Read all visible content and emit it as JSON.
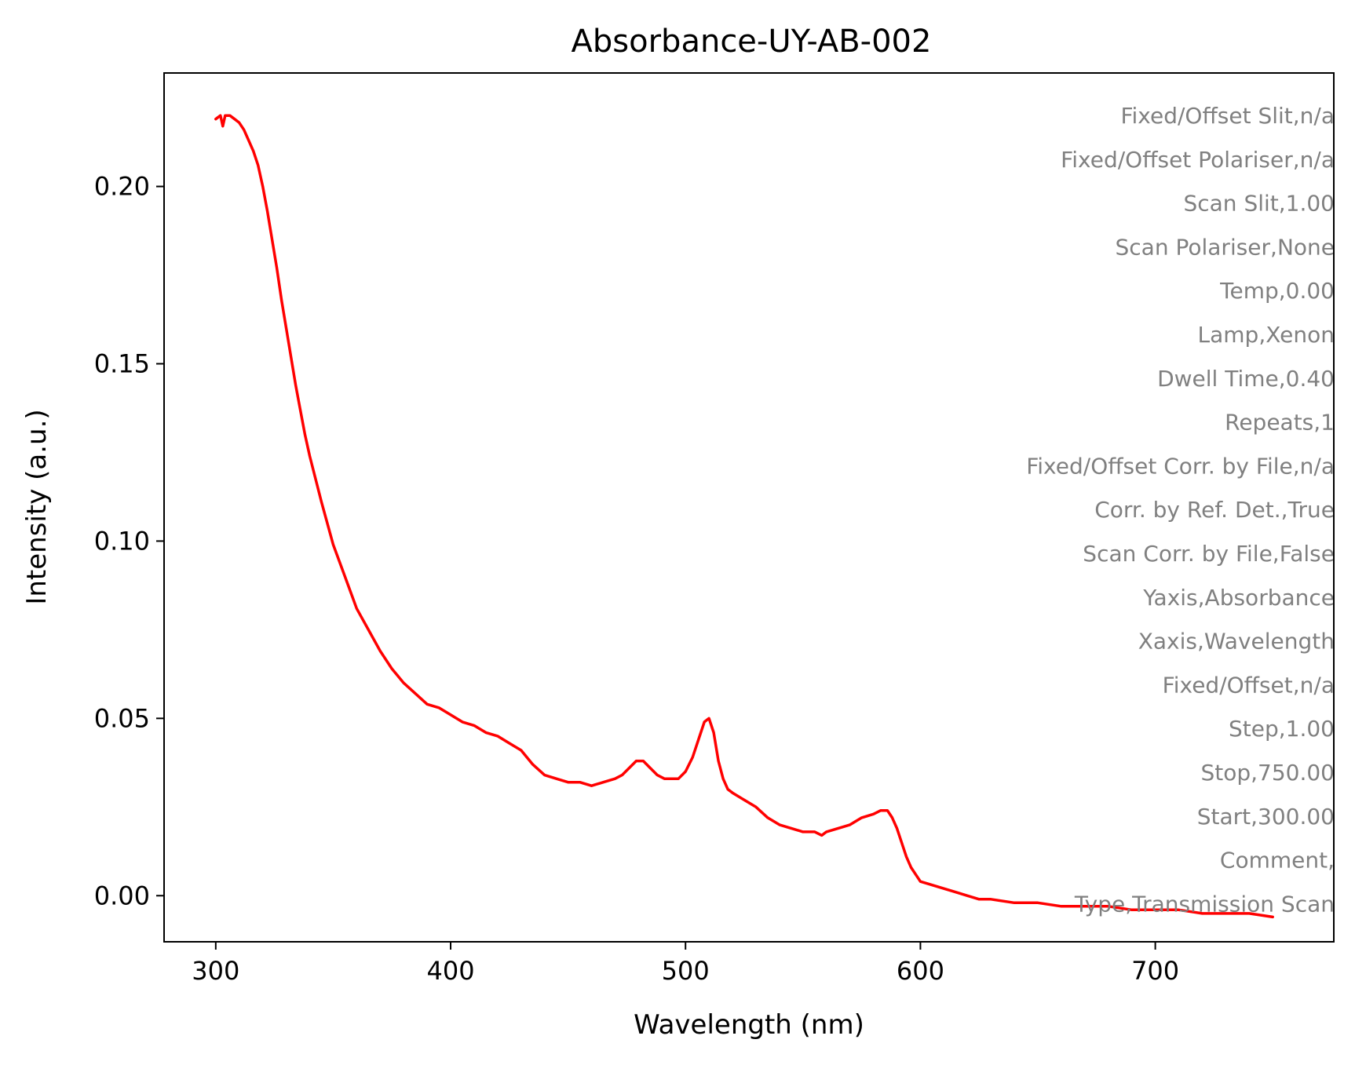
{
  "chart_data": {
    "type": "line",
    "title": "Absorbance-UY-AB-002",
    "xlabel": "Wavelength (nm)",
    "ylabel": "Intensity (a.u.)",
    "xlim": [
      278,
      776
    ],
    "ylim": [
      -0.013,
      0.232
    ],
    "xticks": [
      300,
      400,
      500,
      600,
      700
    ],
    "xtick_labels": [
      "300",
      "400",
      "500",
      "600",
      "700"
    ],
    "yticks": [
      0.0,
      0.05,
      0.1,
      0.15,
      0.2
    ],
    "ytick_labels": [
      "0.00",
      "0.05",
      "0.10",
      "0.15",
      "0.20"
    ],
    "grid": false,
    "series": [
      {
        "color": "#ff0000",
        "x": [
          300,
          302,
          303,
          304,
          306,
          308,
          310,
          312,
          314,
          316,
          318,
          320,
          322,
          324,
          326,
          328,
          330,
          332,
          334,
          336,
          338,
          340,
          345,
          350,
          355,
          360,
          365,
          370,
          375,
          380,
          385,
          390,
          395,
          400,
          405,
          410,
          415,
          420,
          425,
          430,
          435,
          440,
          445,
          450,
          455,
          460,
          465,
          470,
          473,
          476,
          479,
          482,
          485,
          488,
          491,
          494,
          497,
          500,
          503,
          506,
          508,
          510,
          512,
          514,
          516,
          518,
          520,
          525,
          530,
          535,
          540,
          545,
          550,
          555,
          558,
          560,
          565,
          570,
          575,
          580,
          583,
          586,
          588,
          590,
          592,
          594,
          596,
          598,
          600,
          605,
          610,
          615,
          620,
          625,
          630,
          640,
          650,
          660,
          670,
          680,
          690,
          700,
          710,
          720,
          730,
          740,
          750
        ],
        "values": [
          0.219,
          0.22,
          0.217,
          0.22,
          0.22,
          0.219,
          0.218,
          0.216,
          0.213,
          0.21,
          0.206,
          0.2,
          0.193,
          0.185,
          0.177,
          0.168,
          0.16,
          0.152,
          0.144,
          0.137,
          0.13,
          0.124,
          0.111,
          0.099,
          0.09,
          0.081,
          0.075,
          0.069,
          0.064,
          0.06,
          0.057,
          0.054,
          0.053,
          0.051,
          0.049,
          0.048,
          0.046,
          0.045,
          0.043,
          0.041,
          0.037,
          0.034,
          0.033,
          0.032,
          0.032,
          0.031,
          0.032,
          0.033,
          0.034,
          0.036,
          0.038,
          0.038,
          0.036,
          0.034,
          0.033,
          0.033,
          0.033,
          0.035,
          0.039,
          0.045,
          0.049,
          0.05,
          0.046,
          0.038,
          0.033,
          0.03,
          0.029,
          0.027,
          0.025,
          0.022,
          0.02,
          0.019,
          0.018,
          0.018,
          0.017,
          0.018,
          0.019,
          0.02,
          0.022,
          0.023,
          0.024,
          0.024,
          0.022,
          0.019,
          0.015,
          0.011,
          0.008,
          0.006,
          0.004,
          0.003,
          0.002,
          0.001,
          0.0,
          -0.001,
          -0.001,
          -0.002,
          -0.002,
          -0.003,
          -0.003,
          -0.003,
          -0.004,
          -0.004,
          -0.004,
          -0.005,
          -0.005,
          -0.005,
          -0.006
        ]
      }
    ],
    "annotations": [
      "Fixed/Offset Slit,n/a",
      "Fixed/Offset Polariser,n/a",
      "Scan Slit,1.00",
      "Scan Polariser,None",
      "Temp,0.00",
      "Lamp,Xenon",
      "Dwell Time,0.40",
      "Repeats,1",
      "Fixed/Offset Corr. by File,n/a",
      "Corr. by Ref. Det.,True",
      "Scan Corr. by File,False",
      "Yaxis,Absorbance",
      "Xaxis,Wavelength",
      "Fixed/Offset,n/a",
      "Step,1.00",
      "Stop,750.00",
      "Start,300.00",
      "Comment,",
      "Type,Transmission Scan"
    ],
    "annotation_color": "#808080"
  }
}
